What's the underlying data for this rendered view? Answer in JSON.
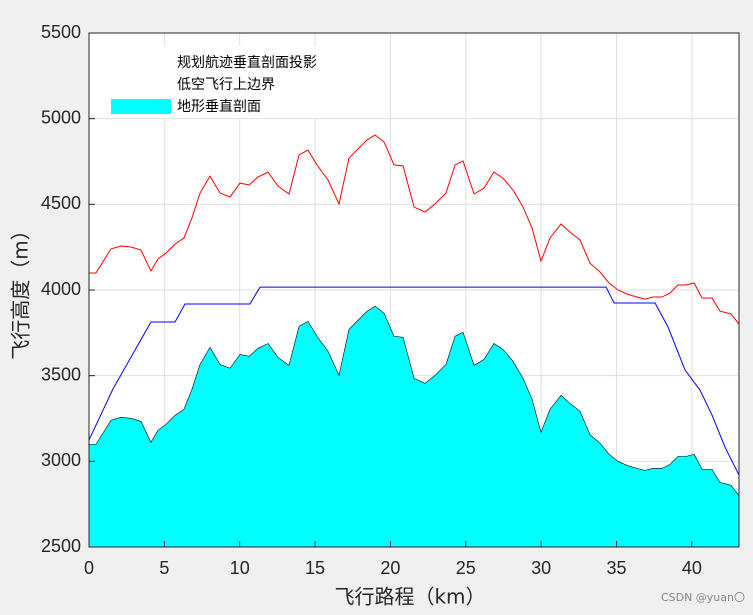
{
  "chart_data": {
    "type": "line",
    "xlabel": "飞行路程（km）",
    "ylabel": "飞行高度（m）",
    "xlim": [
      0,
      43.13
    ],
    "ylim": [
      2500,
      5500
    ],
    "xticks": [
      0,
      5,
      10,
      15,
      20,
      25,
      30,
      35,
      40
    ],
    "yticks": [
      2500,
      3000,
      3500,
      4000,
      4500,
      5000,
      5500
    ],
    "grid": true,
    "legend": "upper-left",
    "watermark": "CSDN @yuan〇",
    "series": [
      {
        "name": "规划航迹垂直剖面投影",
        "type": "line",
        "color": "#0000ff",
        "x": [
          0,
          1.59,
          4.11,
          5.71,
          6.37,
          10.68,
          11.35,
          34.31,
          34.84,
          37.56,
          38.42,
          39.55,
          40.54,
          41.34,
          42.2,
          43.13
        ],
        "values": [
          3124,
          3422,
          3813,
          3813,
          3918,
          3918,
          4017,
          4017,
          3924,
          3924,
          3784,
          3533,
          3416,
          3270,
          3083,
          2920
        ]
      },
      {
        "name": "低空飞行上边界",
        "type": "line",
        "color": "#ff0000",
        "x": [
          0,
          0.46,
          1.46,
          2.12,
          2.79,
          3.45,
          4.11,
          4.58,
          5.11,
          5.71,
          6.3,
          6.83,
          7.37,
          8.03,
          8.69,
          9.36,
          10.02,
          10.62,
          11.21,
          11.88,
          12.54,
          13.27,
          13.94,
          14.53,
          15.13,
          15.86,
          16.59,
          17.25,
          17.78,
          18.45,
          18.98,
          19.58,
          20.24,
          20.84,
          21.57,
          22.3,
          23.03,
          23.69,
          24.29,
          24.82,
          25.55,
          26.21,
          26.87,
          27.47,
          28.14,
          28.8,
          29.4,
          29.99,
          30.59,
          31.32,
          31.92,
          32.58,
          33.24,
          33.91,
          34.51,
          35.1,
          35.7,
          36.36,
          36.89,
          37.43,
          38.02,
          38.55,
          39.08,
          39.62,
          40.15,
          40.68,
          41.34,
          41.87,
          42.6,
          43.13
        ],
        "values": [
          4099,
          4099,
          4240,
          4257,
          4251,
          4233,
          4111,
          4181,
          4216,
          4268,
          4303,
          4420,
          4566,
          4665,
          4566,
          4543,
          4624,
          4613,
          4659,
          4688,
          4607,
          4560,
          4788,
          4817,
          4730,
          4642,
          4502,
          4770,
          4817,
          4876,
          4905,
          4864,
          4730,
          4724,
          4484,
          4455,
          4508,
          4566,
          4730,
          4753,
          4560,
          4595,
          4688,
          4653,
          4583,
          4484,
          4362,
          4169,
          4303,
          4385,
          4338,
          4292,
          4157,
          4105,
          4041,
          4000,
          3976,
          3959,
          3947,
          3959,
          3959,
          3982,
          4029,
          4029,
          4041,
          3953,
          3953,
          3877,
          3860,
          3801
        ]
      },
      {
        "name": "地形垂直剖面",
        "type": "area",
        "color": "#00ffff",
        "x": [
          0,
          0.46,
          1.46,
          2.12,
          2.79,
          3.45,
          4.11,
          4.58,
          5.11,
          5.71,
          6.3,
          6.83,
          7.37,
          8.03,
          8.69,
          9.36,
          10.02,
          10.62,
          11.21,
          11.88,
          12.54,
          13.27,
          13.94,
          14.53,
          15.13,
          15.86,
          16.59,
          17.25,
          17.78,
          18.45,
          18.98,
          19.58,
          20.24,
          20.84,
          21.57,
          22.3,
          23.03,
          23.69,
          24.29,
          24.82,
          25.55,
          26.21,
          26.87,
          27.47,
          28.14,
          28.8,
          29.4,
          29.99,
          30.59,
          31.32,
          31.92,
          32.58,
          33.24,
          33.91,
          34.51,
          35.1,
          35.7,
          36.36,
          36.89,
          37.43,
          38.02,
          38.55,
          39.08,
          39.62,
          40.15,
          40.68,
          41.34,
          41.87,
          42.6,
          43.13
        ],
        "values": [
          3099,
          3099,
          3240,
          3257,
          3251,
          3233,
          3111,
          3181,
          3216,
          3268,
          3303,
          3420,
          3566,
          3665,
          3566,
          3543,
          3624,
          3613,
          3659,
          3688,
          3607,
          3560,
          3788,
          3817,
          3730,
          3642,
          3502,
          3770,
          3817,
          3876,
          3905,
          3864,
          3730,
          3724,
          3484,
          3455,
          3508,
          3566,
          3730,
          3753,
          3560,
          3595,
          3688,
          3653,
          3583,
          3484,
          3362,
          3169,
          3303,
          3385,
          3338,
          3292,
          3157,
          3105,
          3041,
          3000,
          2976,
          2959,
          2947,
          2959,
          2959,
          2982,
          3029,
          3029,
          3041,
          2953,
          2953,
          2877,
          2860,
          2801
        ]
      }
    ]
  }
}
